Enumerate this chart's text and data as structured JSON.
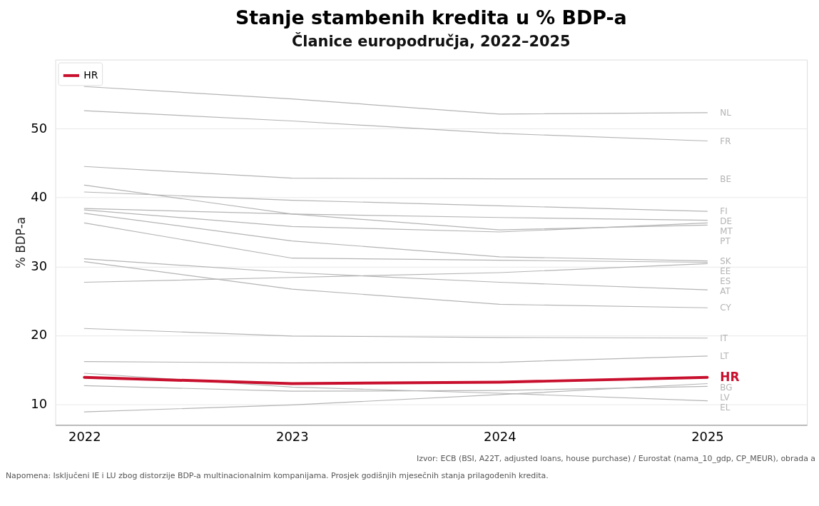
{
  "chart_data": {
    "type": "line",
    "title": "Stanje stambenih kredita u % BDP-a",
    "subtitle": "Članice europodručja, 2022–2025",
    "ylabel": "% BDP-a",
    "x": [
      2022,
      2023,
      2024,
      2025
    ],
    "xlim": [
      2021.86,
      2025.48
    ],
    "xticks": [
      2022,
      2023,
      2024,
      2025
    ],
    "ylim": [
      7,
      60
    ],
    "yticks": [
      10,
      20,
      30,
      40,
      50
    ],
    "grid": "y",
    "legend": "top left",
    "line_style": "solid",
    "series": [
      {
        "name": "NL",
        "color": "#b4b4b4",
        "values": [
          56.1,
          54.3,
          52.1,
          52.3
        ]
      },
      {
        "name": "FR",
        "color": "#b4b4b4",
        "values": [
          52.6,
          51.1,
          49.3,
          48.2
        ]
      },
      {
        "name": "BE",
        "color": "#b4b4b4",
        "values": [
          44.5,
          42.8,
          42.7,
          42.7
        ]
      },
      {
        "name": "FI",
        "color": "#b4b4b4",
        "values": [
          40.8,
          39.6,
          38.8,
          38.0
        ]
      },
      {
        "name": "DE",
        "color": "#b4b4b4",
        "values": [
          38.4,
          37.6,
          37.1,
          36.7
        ]
      },
      {
        "name": "MT",
        "color": "#b4b4b4",
        "values": [
          38.2,
          35.8,
          35.0,
          36.3
        ]
      },
      {
        "name": "PT",
        "color": "#b4b4b4",
        "values": [
          41.8,
          37.6,
          35.3,
          36.0
        ]
      },
      {
        "name": "SK",
        "color": "#b4b4b4",
        "values": [
          37.7,
          33.7,
          31.4,
          30.8
        ]
      },
      {
        "name": "EE",
        "color": "#b4b4b4",
        "values": [
          36.3,
          31.2,
          30.9,
          30.6
        ]
      },
      {
        "name": "ES",
        "color": "#b4b4b4",
        "values": [
          27.7,
          28.4,
          29.1,
          30.4
        ]
      },
      {
        "name": "AT",
        "color": "#b4b4b4",
        "values": [
          31.1,
          29.1,
          27.7,
          26.6
        ]
      },
      {
        "name": "CY",
        "color": "#b4b4b4",
        "values": [
          30.7,
          26.7,
          24.5,
          24.0
        ]
      },
      {
        "name": "IT",
        "color": "#b4b4b4",
        "values": [
          21.0,
          19.9,
          19.7,
          19.6
        ]
      },
      {
        "name": "LT",
        "color": "#b4b4b4",
        "values": [
          16.2,
          16.0,
          16.1,
          17.0
        ]
      },
      {
        "name": "BG",
        "color": "#b4b4b4",
        "values": [
          8.9,
          9.9,
          11.4,
          13.0
        ]
      },
      {
        "name": "HR",
        "color": "#c8102e",
        "values": [
          13.9,
          13.0,
          13.2,
          13.9
        ]
      },
      {
        "name": "LV",
        "color": "#b4b4b4",
        "values": [
          12.7,
          11.9,
          12.0,
          12.6
        ]
      },
      {
        "name": "EL",
        "color": "#b4b4b4",
        "values": [
          14.5,
          12.5,
          11.6,
          10.5
        ]
      }
    ],
    "annotations": [
      "Izvor: ECB (BSI, A22T, adjusted loans, house purchase) / Eurostat (nama_10_gdp, CP_MEUR), obrada a",
      "Napomena: Isključeni IE i LU zbog distorzije BDP-a multinacionalnim kompanijama. Prosjek godišnjih mjesečnih stanja prilagođenih kredita."
    ]
  }
}
